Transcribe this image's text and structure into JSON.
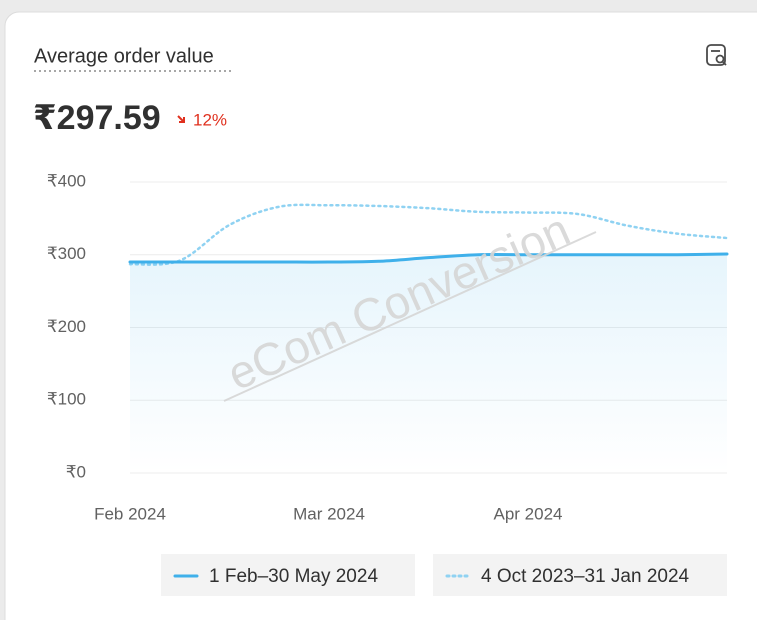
{
  "chart_data": {
    "type": "line",
    "title": "Average order value",
    "headline_value": "₹297.59",
    "change": "12%",
    "watermark": "eCom Conversion",
    "categories": [
      "Feb 2024",
      null,
      null,
      null,
      "Mar 2024",
      null,
      null,
      null,
      "Apr 2024",
      null,
      null,
      null,
      null
    ],
    "series": [
      {
        "name": "1 Feb–30 May 2024",
        "color": "#3fb0ea",
        "style": "solid",
        "values": [
          290,
          290,
          290,
          290,
          290,
          291,
          296,
          300,
          300,
          300,
          300,
          300,
          301
        ]
      },
      {
        "name": "4 Oct 2023–31 Jan 2024",
        "color": "#8fd2f2",
        "style": "dotted",
        "values": [
          287,
          292,
          341,
          366,
          368,
          367,
          364,
          359,
          358,
          356,
          340,
          329,
          323
        ]
      }
    ],
    "ylim": [
      0,
      400
    ],
    "yticks": [
      {
        "value": 0,
        "label": "₹0"
      },
      {
        "value": 100,
        "label": "₹100"
      },
      {
        "value": 200,
        "label": "₹200"
      },
      {
        "value": 300,
        "label": "₹300"
      },
      {
        "value": 400,
        "label": "₹400"
      }
    ],
    "grid": true
  }
}
